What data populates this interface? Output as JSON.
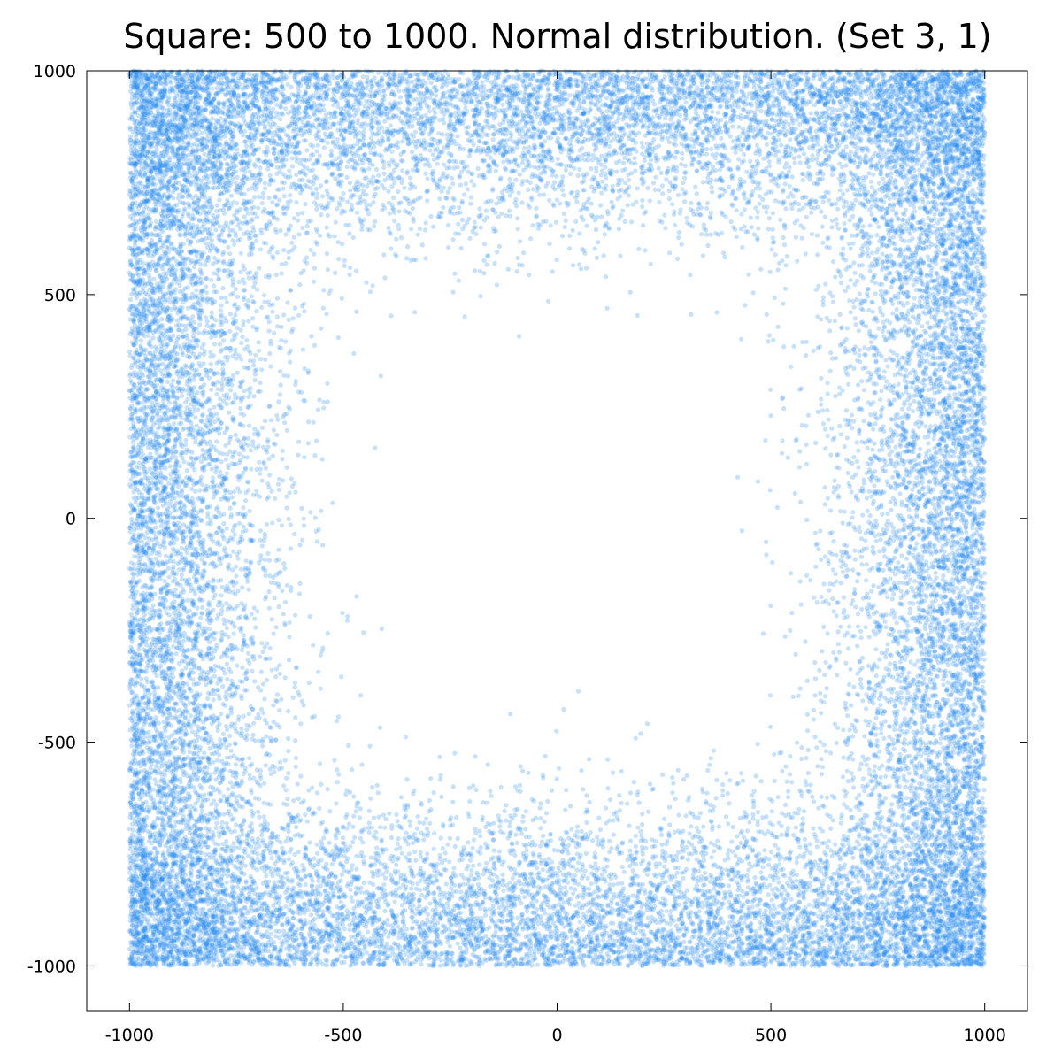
{
  "chart_data": {
    "type": "scatter",
    "title": "Square: 500 to 1000. Normal distribution. (Set 3, 1)",
    "xlabel": "",
    "ylabel": "",
    "xlim": [
      -1100,
      1100
    ],
    "ylim": [
      -1100,
      1000
    ],
    "x_ticks": [
      "-1000",
      "-500",
      "0",
      "500",
      "1000"
    ],
    "y_ticks": [
      "1000",
      "500",
      "0",
      "-500",
      "-1000"
    ],
    "x_tick_values": [
      -1000,
      -500,
      0,
      500,
      1000
    ],
    "y_tick_values": [
      1000,
      500,
      0,
      -500,
      -1000
    ],
    "grid": false,
    "legend": "none",
    "point_color": "#1e88f0",
    "point_opacity": 0.25,
    "series": [
      {
        "distribution": "normal",
        "shape": "square ring",
        "inner_half_width": 500,
        "outer_half_width": 1000,
        "approx_points": 30000
      }
    ]
  }
}
